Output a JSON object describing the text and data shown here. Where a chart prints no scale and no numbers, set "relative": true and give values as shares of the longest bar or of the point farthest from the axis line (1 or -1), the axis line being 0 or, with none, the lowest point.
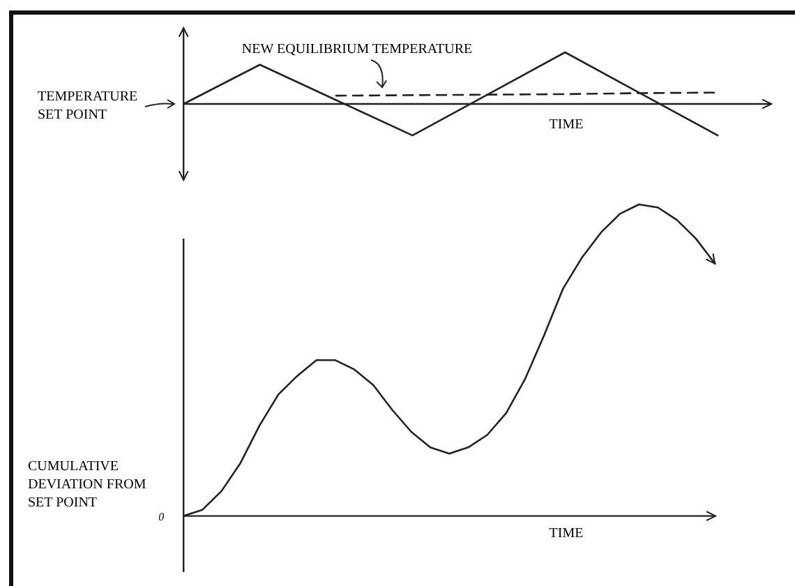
{
  "chart_data": [
    {
      "type": "line",
      "relative": true,
      "xlabel": "TIME",
      "ylabel": "TEMPERATURE SET POINT",
      "annotations": [
        "NEW EQUILIBRIUM TEMPERATURE"
      ],
      "categories": [
        null,
        null,
        null,
        null,
        null,
        null,
        null,
        null
      ],
      "series": [
        {
          "color": "#222222",
          "values": [
            0,
            0.76,
            0.075,
            -0.61,
            0.195,
            1,
            0.195,
            -0.61
          ]
        },
        {
          "color": "#222222",
          "line_style": "dashed",
          "values": [
            null,
            null,
            0.16,
            0.17,
            0.18,
            0.19,
            0.21,
            0.22
          ]
        }
      ]
    },
    {
      "type": "line",
      "relative": true,
      "xlabel": "TIME",
      "ylabel": "CUMULATIVE DEVIATION FROM SET POINT",
      "annotations": [
        "0"
      ],
      "categories": [
        null,
        null,
        null,
        null,
        null,
        null,
        null,
        null,
        null,
        null,
        null,
        null,
        null,
        null,
        null,
        null,
        null,
        null,
        null,
        null,
        null,
        null,
        null,
        null,
        null,
        null,
        null,
        null,
        null
      ],
      "series": [
        {
          "color": "#222222",
          "values": [
            0,
            0.02,
            0.08,
            0.17,
            0.29,
            0.39,
            0.45,
            0.5,
            0.5,
            0.47,
            0.42,
            0.34,
            0.27,
            0.22,
            0.2,
            0.22,
            0.26,
            0.33,
            0.44,
            0.58,
            0.73,
            0.83,
            0.91,
            0.97,
            1,
            0.99,
            0.95,
            0.89,
            0.81
          ]
        }
      ]
    }
  ]
}
